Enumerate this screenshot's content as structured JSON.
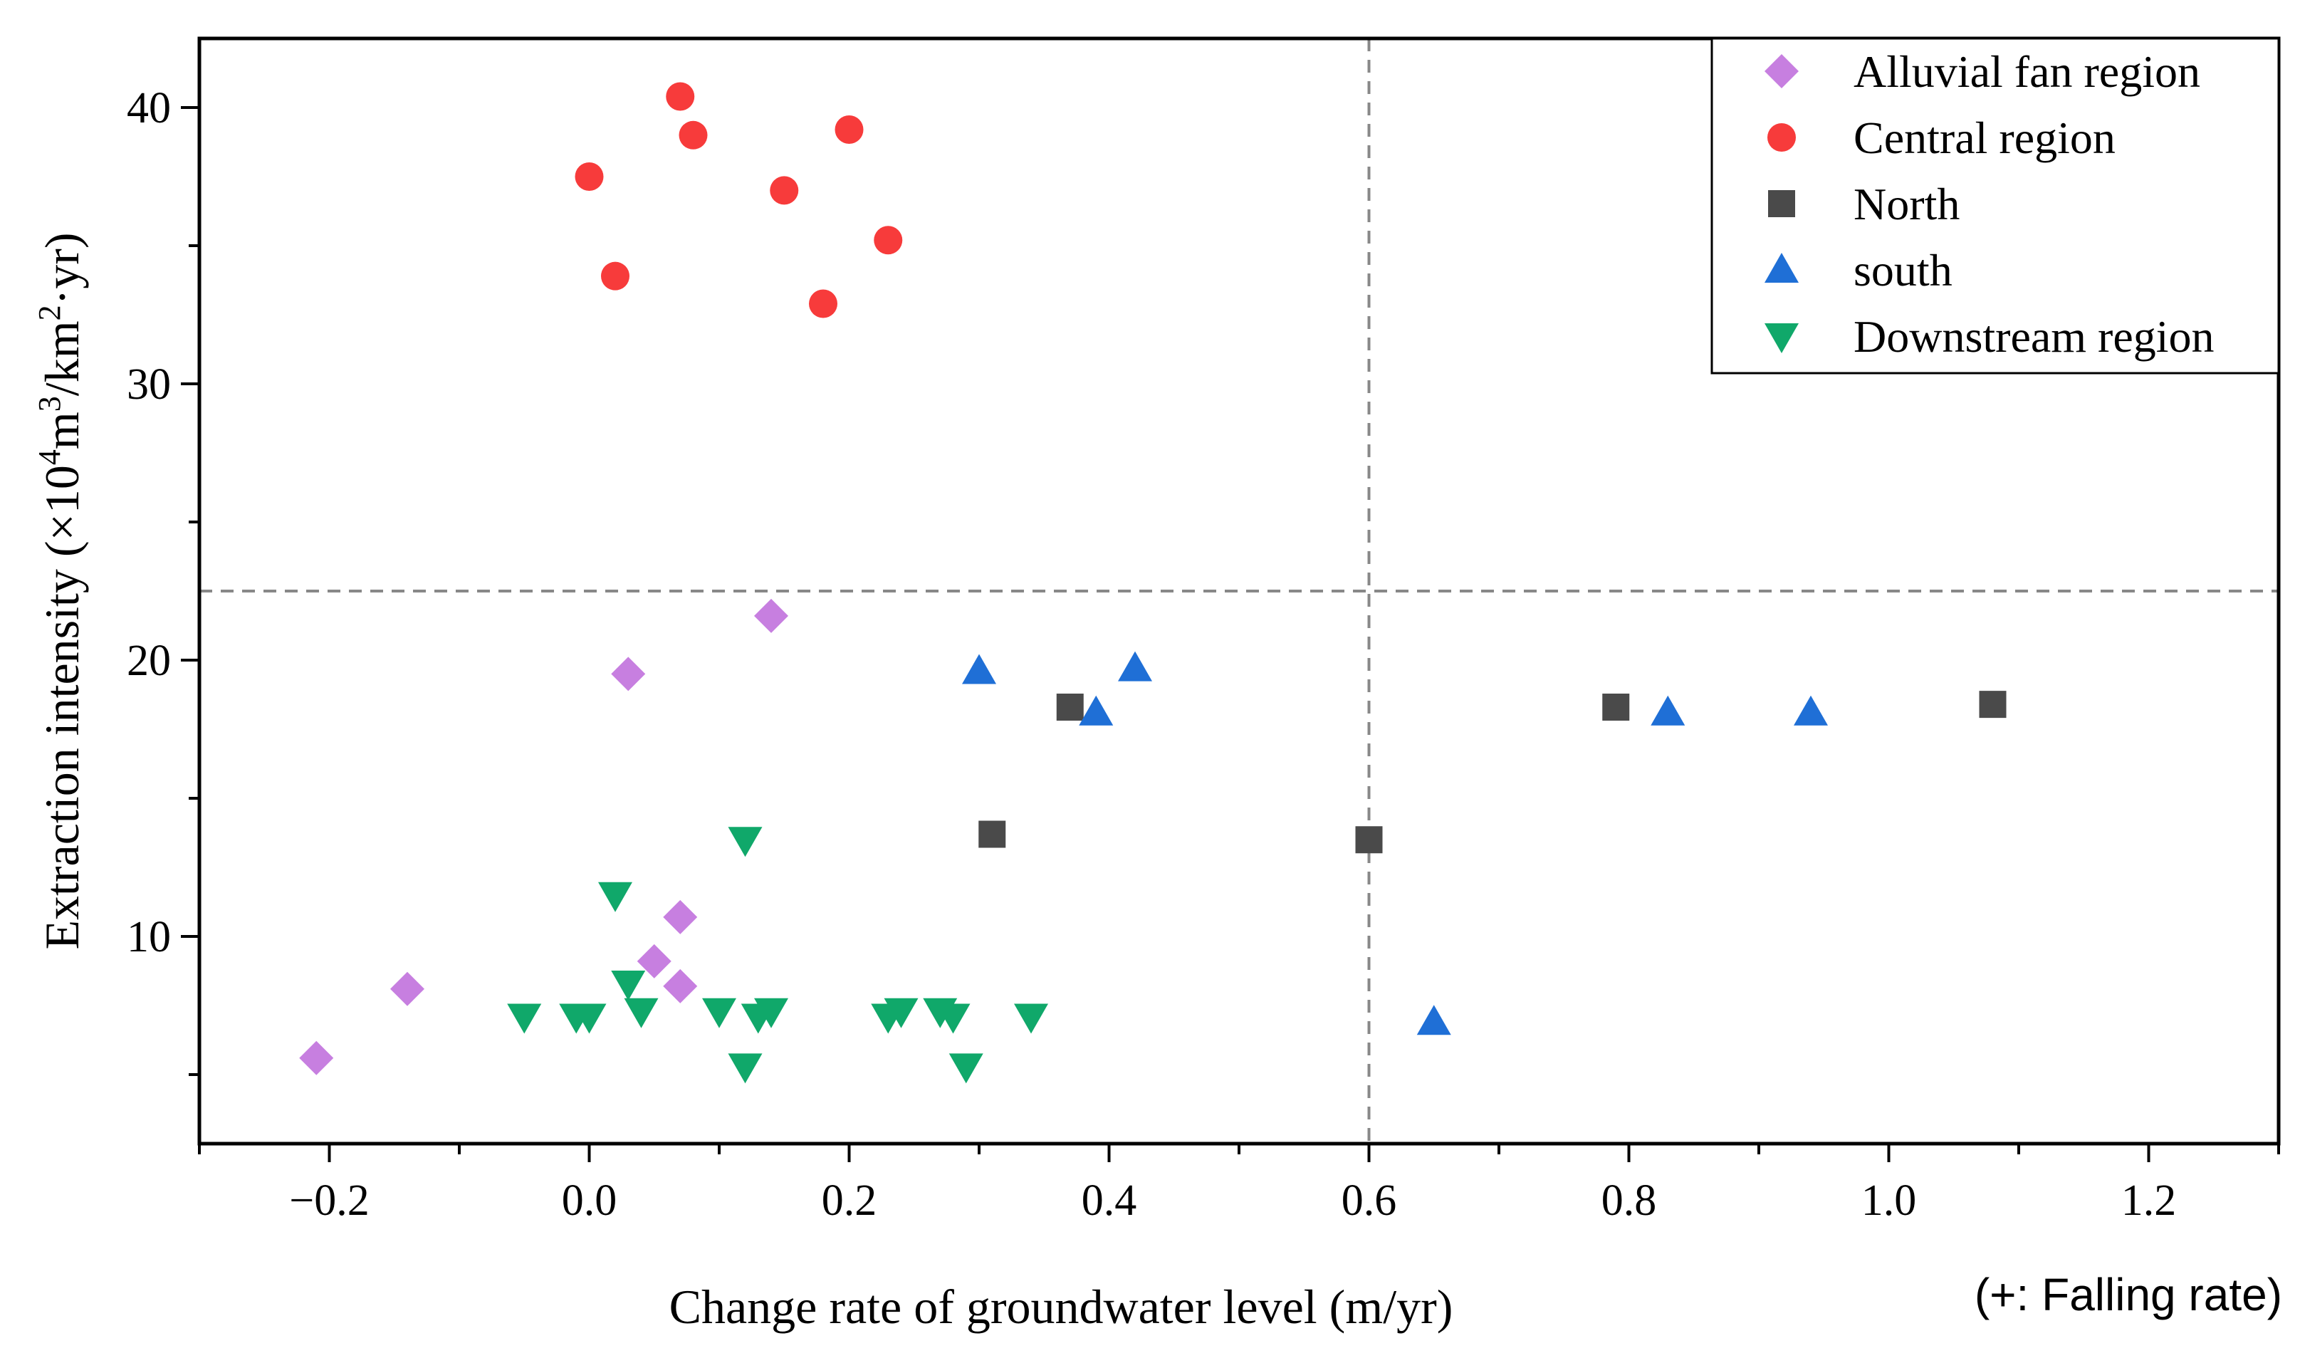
{
  "chart_data": {
    "type": "scatter",
    "title": "",
    "xlabel": "Change rate of groundwater level (m/yr)",
    "ylabel_prefix": "Extraction intensity (×10",
    "ylabel_sup1": "4",
    "ylabel_mid": "m",
    "ylabel_sup2": "3",
    "ylabel_mid2": "/km",
    "ylabel_sup3": "2",
    "ylabel_suffix": "·yr)",
    "note": "(+: Falling rate)",
    "xlim": [
      -0.3,
      1.3
    ],
    "ylim": [
      2.5,
      42.5
    ],
    "xticks": [
      -0.2,
      0.0,
      0.2,
      0.4,
      0.6,
      0.8,
      1.0,
      1.2
    ],
    "xtick_labels": [
      "−0.2",
      "0.0",
      "0.2",
      "0.4",
      "0.6",
      "0.8",
      "1.0",
      "1.2"
    ],
    "yticks": [
      10,
      20,
      30,
      40
    ],
    "ytick_labels": [
      "10",
      "20",
      "30",
      "40"
    ],
    "reference_lines": {
      "x": 0.6,
      "y": 22.5
    },
    "legend_position": "top-right",
    "series": [
      {
        "name": "Alluvial fan region",
        "marker": "diamond",
        "color": "#c77fe0",
        "points": [
          [
            -0.21,
            5.6
          ],
          [
            -0.14,
            8.1
          ],
          [
            0.03,
            19.5
          ],
          [
            0.05,
            9.1
          ],
          [
            0.07,
            10.7
          ],
          [
            0.07,
            8.2
          ],
          [
            0.14,
            21.6
          ]
        ]
      },
      {
        "name": "Central region",
        "marker": "circle",
        "color": "#f73b3b",
        "points": [
          [
            0.0,
            37.5
          ],
          [
            0.02,
            33.9
          ],
          [
            0.07,
            40.4
          ],
          [
            0.08,
            39.0
          ],
          [
            0.15,
            37.0
          ],
          [
            0.18,
            32.9
          ],
          [
            0.2,
            39.2
          ],
          [
            0.23,
            35.2
          ]
        ]
      },
      {
        "name": "North",
        "marker": "square",
        "color": "#4a4a4a",
        "points": [
          [
            0.31,
            13.7
          ],
          [
            0.37,
            18.3
          ],
          [
            0.6,
            13.5
          ],
          [
            0.79,
            18.3
          ],
          [
            1.08,
            18.4
          ]
        ]
      },
      {
        "name": "south",
        "marker": "triangle-up",
        "color": "#1f6fd6",
        "points": [
          [
            0.3,
            19.6
          ],
          [
            0.39,
            18.1
          ],
          [
            0.42,
            19.7
          ],
          [
            0.65,
            6.9
          ],
          [
            0.83,
            18.1
          ],
          [
            0.94,
            18.1
          ]
        ]
      },
      {
        "name": "Downstream region",
        "marker": "triangle-down",
        "color": "#10a86a",
        "points": [
          [
            -0.05,
            7.1
          ],
          [
            -0.01,
            7.1
          ],
          [
            0.0,
            7.1
          ],
          [
            0.02,
            11.5
          ],
          [
            0.03,
            8.3
          ],
          [
            0.04,
            7.3
          ],
          [
            0.1,
            7.3
          ],
          [
            0.12,
            13.5
          ],
          [
            0.12,
            5.3
          ],
          [
            0.13,
            7.1
          ],
          [
            0.14,
            7.3
          ],
          [
            0.23,
            7.1
          ],
          [
            0.24,
            7.3
          ],
          [
            0.27,
            7.3
          ],
          [
            0.28,
            7.1
          ],
          [
            0.29,
            5.3
          ],
          [
            0.34,
            7.1
          ]
        ]
      }
    ]
  }
}
